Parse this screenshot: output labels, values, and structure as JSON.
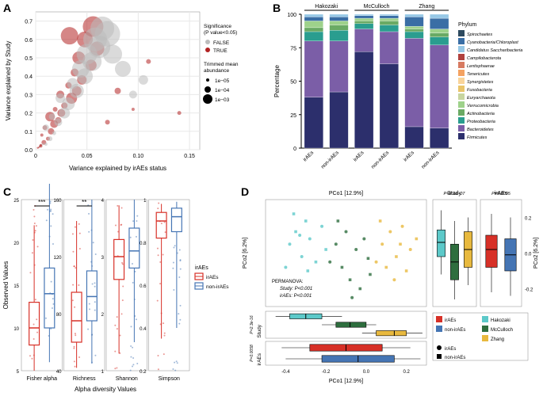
{
  "panelA": {
    "label": "A",
    "xaxis_label": "Variance explained by irAEs status",
    "yaxis_label": "Variance explained by Study",
    "xlim": [
      0,
      0.16
    ],
    "ylim": [
      0,
      0.75
    ],
    "xticks": [
      0,
      0.05,
      0.1,
      0.15
    ],
    "yticks": [
      0,
      0.1,
      0.2,
      0.3,
      0.4,
      0.5,
      0.6,
      0.7
    ],
    "grid_color": "#e8e8e8",
    "background_color": "#ffffff",
    "point_color_true": "#b22222",
    "point_color_false": "#bcbcbc",
    "legend_sig_title": "Significance\n(P value<0.05)",
    "legend_sig_items": [
      "FALSE",
      "TRUE"
    ],
    "legend_size_title": "Trimmed mean\nabundance",
    "legend_size_items": [
      "1e−05",
      "1e−04",
      "1e−03"
    ],
    "points": [
      {
        "x": 0.005,
        "y": 0.02,
        "sig": true,
        "r": 2
      },
      {
        "x": 0.008,
        "y": 0.04,
        "sig": true,
        "r": 3
      },
      {
        "x": 0.012,
        "y": 0.06,
        "sig": true,
        "r": 2.5
      },
      {
        "x": 0.006,
        "y": 0.08,
        "sig": true,
        "r": 2
      },
      {
        "x": 0.015,
        "y": 0.1,
        "sig": true,
        "r": 4
      },
      {
        "x": 0.009,
        "y": 0.12,
        "sig": true,
        "r": 3
      },
      {
        "x": 0.018,
        "y": 0.14,
        "sig": true,
        "r": 5
      },
      {
        "x": 0.022,
        "y": 0.16,
        "sig": true,
        "r": 4
      },
      {
        "x": 0.014,
        "y": 0.18,
        "sig": true,
        "r": 6
      },
      {
        "x": 0.025,
        "y": 0.2,
        "sig": true,
        "r": 5
      },
      {
        "x": 0.019,
        "y": 0.22,
        "sig": true,
        "r": 3
      },
      {
        "x": 0.028,
        "y": 0.24,
        "sig": true,
        "r": 4
      },
      {
        "x": 0.035,
        "y": 0.28,
        "sig": true,
        "r": 7
      },
      {
        "x": 0.024,
        "y": 0.3,
        "sig": true,
        "r": 5
      },
      {
        "x": 0.04,
        "y": 0.32,
        "sig": true,
        "r": 6
      },
      {
        "x": 0.032,
        "y": 0.35,
        "sig": true,
        "r": 4
      },
      {
        "x": 0.045,
        "y": 0.38,
        "sig": true,
        "r": 6
      },
      {
        "x": 0.038,
        "y": 0.42,
        "sig": true,
        "r": 5
      },
      {
        "x": 0.054,
        "y": 0.46,
        "sig": true,
        "r": 7
      },
      {
        "x": 0.042,
        "y": 0.5,
        "sig": true,
        "r": 8
      },
      {
        "x": 0.06,
        "y": 0.55,
        "sig": true,
        "r": 9
      },
      {
        "x": 0.048,
        "y": 0.6,
        "sig": true,
        "r": 10
      },
      {
        "x": 0.056,
        "y": 0.67,
        "sig": true,
        "r": 13
      },
      {
        "x": 0.033,
        "y": 0.62,
        "sig": true,
        "r": 11
      },
      {
        "x": 0.07,
        "y": 0.15,
        "sig": true,
        "r": 3
      },
      {
        "x": 0.08,
        "y": 0.32,
        "sig": true,
        "r": 4
      },
      {
        "x": 0.095,
        "y": 0.22,
        "sig": true,
        "r": 2
      },
      {
        "x": 0.11,
        "y": 0.48,
        "sig": true,
        "r": 3
      },
      {
        "x": 0.14,
        "y": 0.2,
        "sig": true,
        "r": 2.5
      },
      {
        "x": 0.01,
        "y": 0.03,
        "sig": false,
        "r": 2
      },
      {
        "x": 0.014,
        "y": 0.06,
        "sig": false,
        "r": 3
      },
      {
        "x": 0.018,
        "y": 0.09,
        "sig": false,
        "r": 2.5
      },
      {
        "x": 0.01,
        "y": 0.12,
        "sig": false,
        "r": 4
      },
      {
        "x": 0.022,
        "y": 0.15,
        "sig": false,
        "r": 5
      },
      {
        "x": 0.016,
        "y": 0.18,
        "sig": false,
        "r": 4
      },
      {
        "x": 0.028,
        "y": 0.2,
        "sig": false,
        "r": 7
      },
      {
        "x": 0.032,
        "y": 0.25,
        "sig": false,
        "r": 8
      },
      {
        "x": 0.024,
        "y": 0.28,
        "sig": false,
        "r": 6
      },
      {
        "x": 0.04,
        "y": 0.32,
        "sig": false,
        "r": 9
      },
      {
        "x": 0.036,
        "y": 0.36,
        "sig": false,
        "r": 7
      },
      {
        "x": 0.048,
        "y": 0.4,
        "sig": false,
        "r": 10
      },
      {
        "x": 0.044,
        "y": 0.44,
        "sig": false,
        "r": 11
      },
      {
        "x": 0.055,
        "y": 0.48,
        "sig": false,
        "r": 12
      },
      {
        "x": 0.05,
        "y": 0.52,
        "sig": false,
        "r": 13
      },
      {
        "x": 0.062,
        "y": 0.56,
        "sig": false,
        "r": 14
      },
      {
        "x": 0.058,
        "y": 0.6,
        "sig": false,
        "r": 15
      },
      {
        "x": 0.07,
        "y": 0.63,
        "sig": false,
        "r": 16
      },
      {
        "x": 0.065,
        "y": 0.66,
        "sig": false,
        "r": 15
      },
      {
        "x": 0.075,
        "y": 0.52,
        "sig": false,
        "r": 12
      },
      {
        "x": 0.085,
        "y": 0.44,
        "sig": false,
        "r": 10
      },
      {
        "x": 0.095,
        "y": 0.3,
        "sig": false,
        "r": 5
      },
      {
        "x": 0.105,
        "y": 0.38,
        "sig": false,
        "r": 6
      },
      {
        "x": 0.002,
        "y": 0.01,
        "sig": true,
        "r": 1.2
      },
      {
        "x": 0.003,
        "y": 0.012,
        "sig": true,
        "r": 1
      },
      {
        "x": 0.004,
        "y": 0.015,
        "sig": false,
        "r": 1
      },
      {
        "x": 0.005,
        "y": 0.025,
        "sig": true,
        "r": 1.5
      },
      {
        "x": 0.007,
        "y": 0.03,
        "sig": false,
        "r": 1.3
      },
      {
        "x": 0.004,
        "y": 0.018,
        "sig": true,
        "r": 1.1
      }
    ]
  },
  "panelB": {
    "label": "B",
    "yaxis_label": "Percentage",
    "ylim": [
      0,
      100
    ],
    "yticks": [
      0,
      25,
      50,
      75,
      100
    ],
    "studies": [
      "Hakozaki",
      "McCulloch",
      "Zhang"
    ],
    "categories": [
      "irAEs",
      "non-irAEs",
      "irAEs",
      "non-irAEs",
      "irAEs",
      "non-irAEs"
    ],
    "legend_title": "Phylum",
    "phyla": [
      {
        "name": "Spirochaetes",
        "color": "#2e4a5f"
      },
      {
        "name": "Cyanobacteria/Chloroplast",
        "color": "#3a6ea5"
      },
      {
        "name": "Candidatus Saccharibacteria",
        "color": "#97c8e6"
      },
      {
        "name": "Campilobacterota",
        "color": "#b0413e"
      },
      {
        "name": "Lentisphaerae",
        "color": "#d77a61"
      },
      {
        "name": "Tenericutes",
        "color": "#f4a261"
      },
      {
        "name": "Synergistetes",
        "color": "#f9d49a"
      },
      {
        "name": "Fusobacteria",
        "color": "#e9c46a"
      },
      {
        "name": "Euryarchaeota",
        "color": "#c7d59f"
      },
      {
        "name": "Verrucomicrobia",
        "color": "#9ed28b"
      },
      {
        "name": "Actinobacteria",
        "color": "#6aaa64"
      },
      {
        "name": "Proteobacteria",
        "color": "#2a9d8f"
      },
      {
        "name": "Bacteroidetes",
        "color": "#7b5ea7"
      },
      {
        "name": "Firmicutes",
        "color": "#2c2f6c"
      }
    ],
    "bars": [
      {
        "segments": [
          {
            "c": "#2c2f6c",
            "v": 38
          },
          {
            "c": "#7b5ea7",
            "v": 42
          },
          {
            "c": "#2a9d8f",
            "v": 7
          },
          {
            "c": "#6aaa64",
            "v": 3
          },
          {
            "c": "#9ed28b",
            "v": 5
          },
          {
            "c": "#3a6ea5",
            "v": 3
          },
          {
            "c": "#97c8e6",
            "v": 2
          }
        ]
      },
      {
        "segments": [
          {
            "c": "#2c2f6c",
            "v": 42
          },
          {
            "c": "#7b5ea7",
            "v": 38
          },
          {
            "c": "#2a9d8f",
            "v": 8
          },
          {
            "c": "#6aaa64",
            "v": 4
          },
          {
            "c": "#9ed28b",
            "v": 3
          },
          {
            "c": "#3a6ea5",
            "v": 3
          },
          {
            "c": "#97c8e6",
            "v": 2
          }
        ]
      },
      {
        "segments": [
          {
            "c": "#2c2f6c",
            "v": 72
          },
          {
            "c": "#7b5ea7",
            "v": 17
          },
          {
            "c": "#2a9d8f",
            "v": 4
          },
          {
            "c": "#6aaa64",
            "v": 2
          },
          {
            "c": "#9ed28b",
            "v": 2
          },
          {
            "c": "#3a6ea5",
            "v": 2
          },
          {
            "c": "#97c8e6",
            "v": 1
          }
        ]
      },
      {
        "segments": [
          {
            "c": "#2c2f6c",
            "v": 63
          },
          {
            "c": "#7b5ea7",
            "v": 24
          },
          {
            "c": "#2a9d8f",
            "v": 5
          },
          {
            "c": "#6aaa64",
            "v": 3
          },
          {
            "c": "#9ed28b",
            "v": 2
          },
          {
            "c": "#3a6ea5",
            "v": 2
          },
          {
            "c": "#97c8e6",
            "v": 1
          }
        ]
      },
      {
        "segments": [
          {
            "c": "#2c2f6c",
            "v": 16
          },
          {
            "c": "#7b5ea7",
            "v": 66
          },
          {
            "c": "#2a9d8f",
            "v": 5
          },
          {
            "c": "#6aaa64",
            "v": 2
          },
          {
            "c": "#9ed28b",
            "v": 2
          },
          {
            "c": "#3a6ea5",
            "v": 7
          },
          {
            "c": "#97c8e6",
            "v": 2
          }
        ]
      },
      {
        "segments": [
          {
            "c": "#2c2f6c",
            "v": 15
          },
          {
            "c": "#7b5ea7",
            "v": 62
          },
          {
            "c": "#2a9d8f",
            "v": 6
          },
          {
            "c": "#6aaa64",
            "v": 3
          },
          {
            "c": "#9ed28b",
            "v": 3
          },
          {
            "c": "#3a6ea5",
            "v": 8
          },
          {
            "c": "#97c8e6",
            "v": 3
          }
        ]
      }
    ]
  },
  "panelC": {
    "label": "C",
    "xaxis_label": "Alpha diversity Values",
    "yaxis_label": "Observed Values",
    "legend_title": "irAEs",
    "color_irAEs": "#d73027",
    "color_non": "#4575b4",
    "legend_items": [
      "irAEs",
      "non-irAEs"
    ],
    "metrics": [
      {
        "name": "Fisher alpha",
        "sig": "***",
        "ylim": [
          5,
          25
        ],
        "yticks": [
          5,
          10,
          15,
          20,
          25
        ],
        "box1": {
          "q1": 8,
          "med": 10,
          "q3": 13,
          "lo": 5,
          "hi": 22
        },
        "box2": {
          "q1": 10,
          "med": 14,
          "q3": 17,
          "lo": 6,
          "hi": 27
        }
      },
      {
        "name": "Richness",
        "sig": "**",
        "ylim": [
          40,
          160
        ],
        "yticks": [
          40,
          80,
          120,
          160
        ],
        "box1": {
          "q1": 60,
          "med": 75,
          "q3": 95,
          "lo": 42,
          "hi": 145
        },
        "box2": {
          "q1": 75,
          "med": 92,
          "q3": 110,
          "lo": 45,
          "hi": 160
        }
      },
      {
        "name": "Shannon",
        "sig": "",
        "ylim": [
          1,
          4
        ],
        "yticks": [
          1,
          2,
          3,
          4
        ],
        "box1": {
          "q1": 2.6,
          "med": 3.0,
          "q3": 3.3,
          "lo": 1.3,
          "hi": 3.9
        },
        "box2": {
          "q1": 2.8,
          "med": 3.1,
          "q3": 3.5,
          "lo": 1.5,
          "hi": 4.0
        }
      },
      {
        "name": "Simpson",
        "sig": "",
        "ylim": [
          0.2,
          1.0
        ],
        "yticks": [
          0.2,
          0.4,
          0.6,
          0.8,
          1.0
        ],
        "box1": {
          "q1": 0.82,
          "med": 0.9,
          "q3": 0.94,
          "lo": 0.35,
          "hi": 0.98
        },
        "box2": {
          "q1": 0.85,
          "med": 0.92,
          "q3": 0.96,
          "lo": 0.4,
          "hi": 0.99
        }
      }
    ]
  },
  "panelD": {
    "label": "D",
    "pc1_label": "PCo1 [12.9%]",
    "pc2_label": "PCo2 [6.2%]",
    "pc2_label_right": "PCo2 [6.2%]",
    "permanova": "PERMANOVA:",
    "permanova_study": "Study: P<0.001",
    "permanova_iraes": "irAEs: P<0.001",
    "study_p_top": "P=8.2e−07",
    "iraes_p_top": "P=0.0095",
    "study_p_side": "P=2.3e-16",
    "iraes_p_side": "P=0.0058",
    "study_label": "Study",
    "iraes_label": "irAEs",
    "pc1_lim": [
      -0.5,
      0.3
    ],
    "pc2_lim": [
      -0.3,
      0.3
    ],
    "pc1_ticks": [
      -0.4,
      -0.2,
      0,
      0.2
    ],
    "pc2_ticks": [
      -0.2,
      0,
      0.2
    ],
    "color_hakozaki": "#5cc9c9",
    "color_mcculloch": "#2e6e3e",
    "color_zhang": "#e8b93e",
    "color_irAEs": "#d73027",
    "color_non": "#4575b4",
    "legend_studies": [
      "Hakozaki",
      "McCulloch",
      "Zhang"
    ],
    "legend_iraes": [
      "irAEs",
      "non-irAEs"
    ],
    "points": [
      {
        "x": -0.38,
        "y": 0.05,
        "s": "Hakozaki",
        "shape": "c"
      },
      {
        "x": -0.35,
        "y": 0.12,
        "s": "Hakozaki",
        "shape": "s"
      },
      {
        "x": -0.32,
        "y": -0.02,
        "s": "Hakozaki",
        "shape": "c"
      },
      {
        "x": -0.3,
        "y": 0.18,
        "s": "Hakozaki",
        "shape": "s"
      },
      {
        "x": -0.28,
        "y": 0.08,
        "s": "Hakozaki",
        "shape": "c"
      },
      {
        "x": -0.25,
        "y": -0.05,
        "s": "Hakozaki",
        "shape": "s"
      },
      {
        "x": -0.22,
        "y": 0.15,
        "s": "Hakozaki",
        "shape": "c"
      },
      {
        "x": -0.2,
        "y": 0.02,
        "s": "Hakozaki",
        "shape": "s"
      },
      {
        "x": -0.4,
        "y": -0.08,
        "s": "Hakozaki",
        "shape": "c"
      },
      {
        "x": -0.36,
        "y": 0.22,
        "s": "Hakozaki",
        "shape": "s"
      },
      {
        "x": -0.33,
        "y": 0.1,
        "s": "Hakozaki",
        "shape": "c"
      },
      {
        "x": -0.29,
        "y": -0.1,
        "s": "Hakozaki",
        "shape": "s"
      },
      {
        "x": -0.15,
        "y": 0.05,
        "s": "McCulloch",
        "shape": "c"
      },
      {
        "x": -0.12,
        "y": -0.08,
        "s": "McCulloch",
        "shape": "s"
      },
      {
        "x": -0.1,
        "y": 0.12,
        "s": "McCulloch",
        "shape": "c"
      },
      {
        "x": -0.08,
        "y": -0.15,
        "s": "McCulloch",
        "shape": "s"
      },
      {
        "x": -0.05,
        "y": 0.02,
        "s": "McCulloch",
        "shape": "c"
      },
      {
        "x": -0.03,
        "y": -0.2,
        "s": "McCulloch",
        "shape": "s"
      },
      {
        "x": -0.01,
        "y": 0.08,
        "s": "McCulloch",
        "shape": "c"
      },
      {
        "x": 0.02,
        "y": -0.12,
        "s": "McCulloch",
        "shape": "s"
      },
      {
        "x": -0.18,
        "y": -0.05,
        "s": "McCulloch",
        "shape": "c"
      },
      {
        "x": -0.14,
        "y": 0.18,
        "s": "McCulloch",
        "shape": "s"
      },
      {
        "x": -0.07,
        "y": -0.25,
        "s": "McCulloch",
        "shape": "c"
      },
      {
        "x": 0.01,
        "y": -0.03,
        "s": "McCulloch",
        "shape": "s"
      },
      {
        "x": 0.08,
        "y": 0.05,
        "s": "Zhang",
        "shape": "c"
      },
      {
        "x": 0.1,
        "y": -0.08,
        "s": "Zhang",
        "shape": "s"
      },
      {
        "x": 0.12,
        "y": 0.12,
        "s": "Zhang",
        "shape": "c"
      },
      {
        "x": 0.15,
        "y": -0.02,
        "s": "Zhang",
        "shape": "s"
      },
      {
        "x": 0.18,
        "y": 0.15,
        "s": "Zhang",
        "shape": "c"
      },
      {
        "x": 0.2,
        "y": -0.1,
        "s": "Zhang",
        "shape": "s"
      },
      {
        "x": 0.22,
        "y": 0.02,
        "s": "Zhang",
        "shape": "c"
      },
      {
        "x": 0.25,
        "y": 0.08,
        "s": "Zhang",
        "shape": "s"
      },
      {
        "x": 0.05,
        "y": -0.05,
        "s": "Zhang",
        "shape": "c"
      },
      {
        "x": 0.07,
        "y": 0.18,
        "s": "Zhang",
        "shape": "s"
      },
      {
        "x": 0.14,
        "y": -0.15,
        "s": "Zhang",
        "shape": "c"
      },
      {
        "x": 0.17,
        "y": 0.05,
        "s": "Zhang",
        "shape": "s"
      }
    ],
    "pc2_box_study": [
      {
        "c": "#5cc9c9",
        "q1": -0.02,
        "med": 0.06,
        "q3": 0.13,
        "lo": -0.12,
        "hi": 0.24
      },
      {
        "c": "#2e6e3e",
        "q1": -0.15,
        "med": -0.05,
        "q3": 0.05,
        "lo": -0.26,
        "hi": 0.18
      },
      {
        "c": "#e8b93e",
        "q1": -0.08,
        "med": 0.02,
        "q3": 0.12,
        "lo": -0.18,
        "hi": 0.2
      }
    ],
    "pc2_box_iraes": [
      {
        "c": "#d73027",
        "q1": -0.08,
        "med": 0.02,
        "q3": 0.1,
        "lo": -0.22,
        "hi": 0.22
      },
      {
        "c": "#4575b4",
        "q1": -0.1,
        "med": -0.01,
        "q3": 0.08,
        "lo": -0.24,
        "hi": 0.2
      }
    ],
    "pc1_box_study": [
      {
        "c": "#5cc9c9",
        "q1": -0.38,
        "med": -0.3,
        "q3": -0.22,
        "lo": -0.45,
        "hi": -0.12
      },
      {
        "c": "#2e6e3e",
        "q1": -0.15,
        "med": -0.08,
        "q3": 0.0,
        "lo": -0.22,
        "hi": 0.05
      },
      {
        "c": "#e8b93e",
        "q1": 0.05,
        "med": 0.14,
        "q3": 0.2,
        "lo": -0.02,
        "hi": 0.28
      }
    ],
    "pc1_box_iraes": [
      {
        "c": "#d73027",
        "q1": -0.28,
        "med": -0.1,
        "q3": 0.08,
        "lo": -0.42,
        "hi": 0.22
      },
      {
        "c": "#4575b4",
        "q1": -0.22,
        "med": -0.04,
        "q3": 0.14,
        "lo": -0.4,
        "hi": 0.27
      }
    ]
  }
}
